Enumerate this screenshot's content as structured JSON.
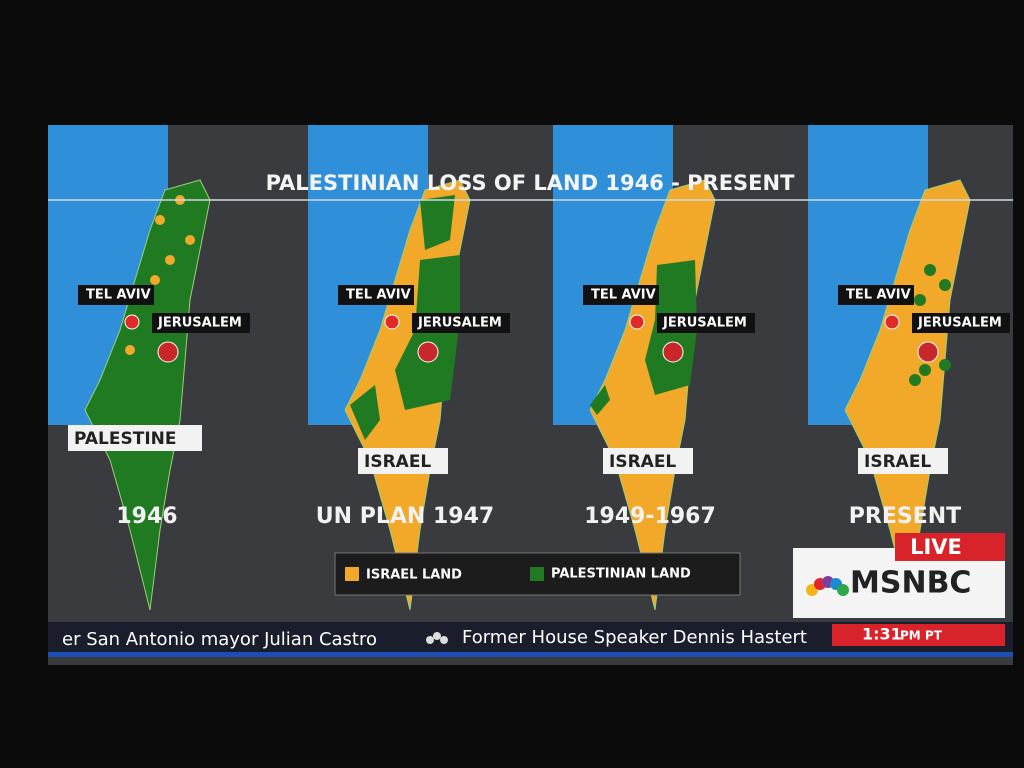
{
  "title": "PALESTINIAN LOSS OF LAND 1946 - PRESENT",
  "panels": [
    {
      "tel_aviv": "TEL AVIV",
      "jerusalem": "JERUSALEM",
      "region": "PALESTINE",
      "period": "1946"
    },
    {
      "tel_aviv": "TEL AVIV",
      "jerusalem": "JERUSALEM",
      "region": "ISRAEL",
      "period": "UN PLAN 1947"
    },
    {
      "tel_aviv": "TEL AVIV",
      "jerusalem": "JERUSALEM",
      "region": "ISRAEL",
      "period": "1949-1967"
    },
    {
      "tel_aviv": "TEL AVIV",
      "jerusalem": "JERUSALEM",
      "region": "ISRAEL",
      "period": "PRESENT"
    }
  ],
  "legend": [
    "ISRAEL LAND",
    "PALESTINIAN LAND"
  ],
  "badge": {
    "live": "LIVE",
    "network": "MSNBC"
  },
  "ticker": {
    "items": [
      "er San Antonio mayor Julian Castro",
      "Former House Speaker Dennis Hastert"
    ],
    "time": "1:31",
    "time_suffix": "PM PT"
  }
}
